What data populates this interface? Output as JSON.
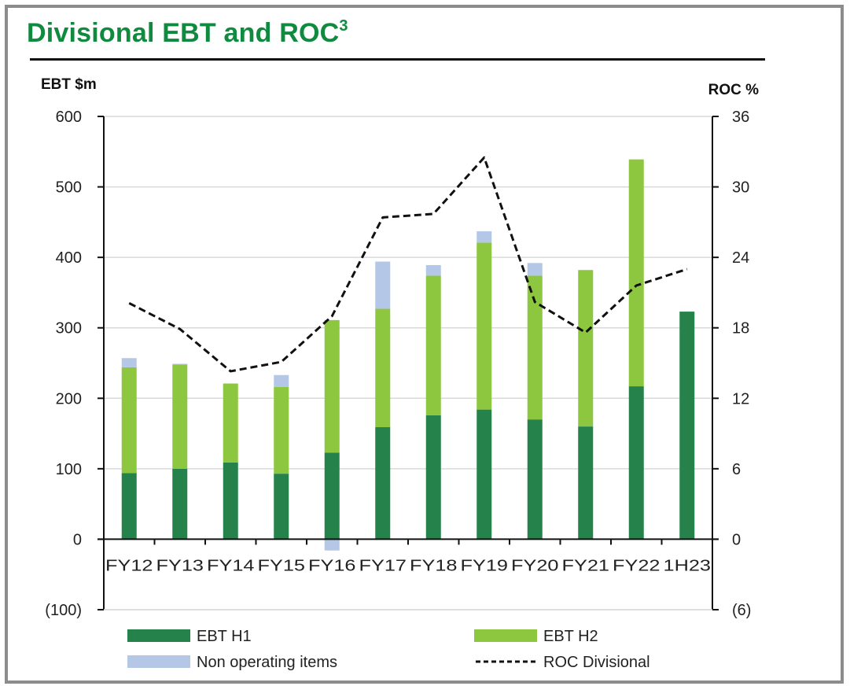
{
  "header": {
    "title": "Divisional EBT and ROC",
    "title_superscript": "3"
  },
  "chart_data": {
    "type": "bar",
    "subtype": "stacked-bar-with-line",
    "title": "Divisional EBT and ROC",
    "title_footnote": "3",
    "xlabel": "",
    "ylabel": "EBT $m",
    "y2label": "ROC %",
    "ylim": [
      -100,
      600
    ],
    "yticks": [
      600,
      500,
      400,
      300,
      200,
      100,
      0,
      -100
    ],
    "ytick_labels": [
      "600",
      "500",
      "400",
      "300",
      "200",
      "100",
      "0",
      "(100)"
    ],
    "y2lim": [
      -6,
      36
    ],
    "y2ticks": [
      36,
      30,
      24,
      18,
      12,
      6,
      0,
      -6
    ],
    "y2tick_labels": [
      "36",
      "30",
      "24",
      "18",
      "12",
      "6",
      "0",
      "(6)"
    ],
    "grid": true,
    "categories": [
      "FY12",
      "FY13",
      "FY14",
      "FY15",
      "FY16",
      "FY17",
      "FY18",
      "FY19",
      "FY20",
      "FY21",
      "FY22",
      "1H23"
    ],
    "series": [
      {
        "name": "EBT H1",
        "type": "bar",
        "axis": "left",
        "color": "#24824a",
        "values": [
          94,
          100,
          109,
          93,
          123,
          159,
          176,
          184,
          170,
          160,
          217,
          323
        ]
      },
      {
        "name": "EBT H2",
        "type": "bar",
        "axis": "left",
        "color": "#8dc63f",
        "values": [
          150,
          148,
          112,
          123,
          188,
          168,
          198,
          237,
          204,
          222,
          322,
          0
        ]
      },
      {
        "name": "Non operating items",
        "type": "bar",
        "axis": "left",
        "color": "#b4c7e7",
        "values": [
          13,
          1,
          0,
          17,
          -16,
          67,
          15,
          16,
          18,
          0,
          0,
          0
        ]
      },
      {
        "name": "ROC Divisional",
        "type": "line",
        "style": "dashed",
        "axis": "right",
        "color": "#111111",
        "values": [
          20.1,
          17.9,
          14.3,
          15.1,
          19.0,
          27.4,
          27.7,
          32.5,
          20.2,
          17.6,
          21.6,
          23.0
        ]
      }
    ],
    "legend": {
      "placement": "bottom",
      "items": [
        {
          "label": "EBT H1",
          "swatch": "bar",
          "color": "#24824a"
        },
        {
          "label": "EBT H2",
          "swatch": "bar",
          "color": "#8dc63f"
        },
        {
          "label": "Non operating items",
          "swatch": "bar",
          "color": "#b4c7e7"
        },
        {
          "label": "ROC Divisional",
          "swatch": "dashed-line",
          "color": "#111111"
        }
      ]
    }
  }
}
